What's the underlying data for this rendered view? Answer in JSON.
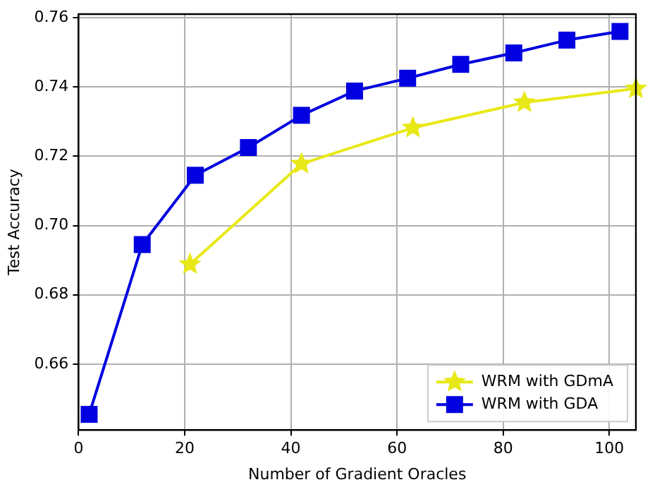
{
  "chart_data": {
    "type": "line",
    "xlabel": "Number of Gradient Oracles",
    "ylabel": "Test Accuracy",
    "xlim": [
      0,
      105
    ],
    "xticks": [
      0,
      20,
      40,
      60,
      80,
      100
    ],
    "ylim": [
      0.641,
      0.761
    ],
    "yticks": [
      0.66,
      0.68,
      {
        "value": 0.7,
        "label": "0.70"
      },
      0.72,
      0.74,
      0.76
    ],
    "grid": true,
    "legend": "bottom right",
    "line_style": "solid",
    "series": [
      {
        "name": "WRM with GDmA",
        "color": "#e8e817",
        "marker": "star",
        "x": [
          21,
          42,
          63,
          84,
          105
        ],
        "values": [
          0.6888,
          0.7178,
          0.7282,
          0.7355,
          0.7395
        ]
      },
      {
        "name": "WRM with GDA",
        "color": "#0000e0",
        "marker": "square",
        "x": [
          2,
          12,
          22,
          32,
          42,
          52,
          62,
          72,
          82,
          92,
          102
        ],
        "values": [
          0.6455,
          0.6945,
          0.7145,
          0.7225,
          0.7318,
          0.7388,
          0.7425,
          0.7465,
          0.7498,
          0.7535,
          0.756
        ]
      }
    ]
  }
}
